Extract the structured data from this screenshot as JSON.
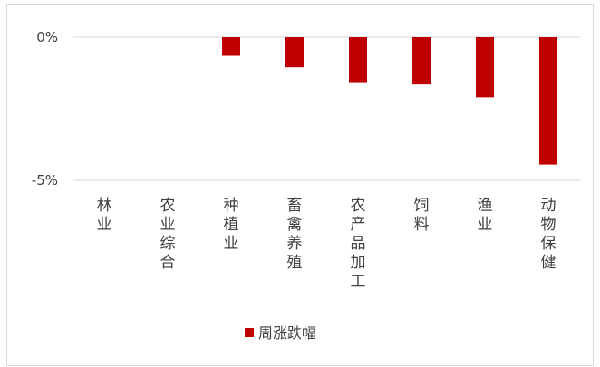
{
  "chart_data": {
    "type": "bar",
    "categories": [
      "林业",
      "农业综合",
      "种植业",
      "畜禽养殖",
      "农产品加工",
      "饲料",
      "渔业",
      "动物保健"
    ],
    "series": [
      {
        "name": "周涨跌幅",
        "values": [
          0.0,
          0.0,
          -0.65,
          -1.05,
          -1.6,
          -1.65,
          -2.1,
          -4.45
        ],
        "color": "#c00000"
      }
    ],
    "yticks": [
      "0%",
      "-5%"
    ],
    "ylim": [
      -5,
      0
    ],
    "xlabel": "",
    "ylabel": "",
    "grid": true,
    "legend": "bottom-center"
  }
}
